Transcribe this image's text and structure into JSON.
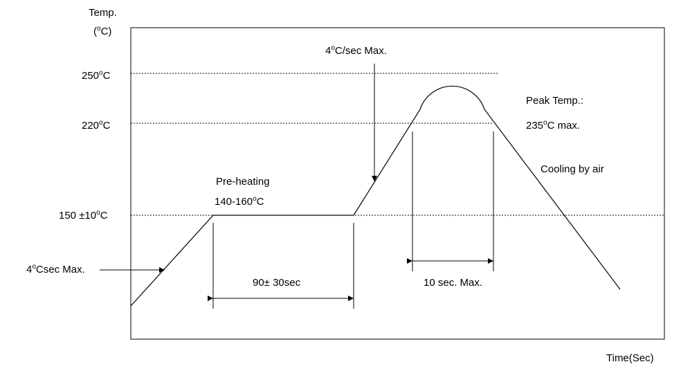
{
  "axes": {
    "y_title": "Temp.",
    "y_unit_prefix": "(",
    "y_unit_deg": "o",
    "y_unit_suffix": "C)",
    "x_title": "Time(Sec)"
  },
  "levels": {
    "t250": {
      "num": "250",
      "deg": "o",
      "unit": "C",
      "value": 250
    },
    "t220": {
      "num": "220",
      "deg": "o",
      "unit": "C",
      "value": 220
    },
    "t150": {
      "num": "150 ±10",
      "deg": "o",
      "unit": "C",
      "value": 150
    }
  },
  "annotations": {
    "ramp1": {
      "num": "4",
      "deg": "o",
      "rest": "Csec Max."
    },
    "ramp2": {
      "num": "4",
      "deg": "o",
      "rest": "C/sec Max."
    },
    "preheat_title": "Pre-heating",
    "preheat_range": {
      "num": "140-160",
      "deg": "o",
      "unit": "C"
    },
    "preheat_time": "90± 30sec",
    "peak_title": "Peak Temp.:",
    "peak_value": {
      "num": "235",
      "deg": "o",
      "rest": "C max."
    },
    "peak_time": "10 sec. Max.",
    "cooling": "Cooling by air"
  }
}
